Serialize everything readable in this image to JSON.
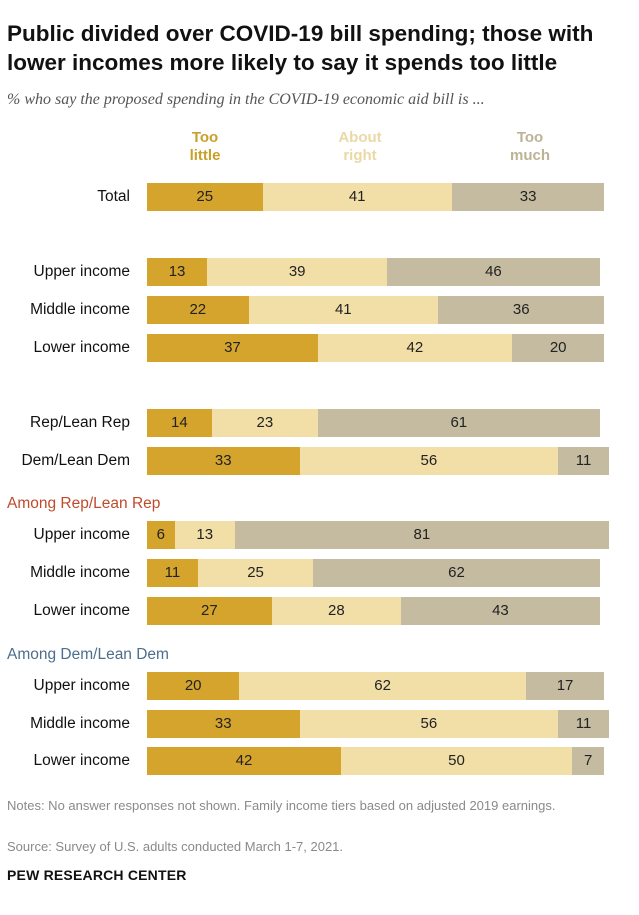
{
  "title": "Public divided over COVID-19 bill spending; those with lower incomes more likely to say it spends too little",
  "subtitle": "% who say the proposed spending in the COVID-19 economic aid bill is ...",
  "colors": {
    "too_little": "#d4a42c",
    "about_right": "#f2dfa8",
    "too_much": "#c4bba0",
    "legend_too_little": "#c9a028",
    "legend_about_right": "#ead9a4",
    "legend_too_much": "#bcb396",
    "group_rep": "#bf4a2c",
    "group_dem": "#4d6e8c"
  },
  "legend": [
    {
      "line1": "Too",
      "line2": "little"
    },
    {
      "line1": "About",
      "line2": "right"
    },
    {
      "line1": "Too",
      "line2": "much"
    }
  ],
  "group_labels": {
    "rep": "Among Rep/Lean Rep",
    "dem": "Among Dem/Lean Dem"
  },
  "chart_data": {
    "type": "bar",
    "orientation": "horizontal",
    "stacked": true,
    "title": "Public divided over COVID-19 bill spending; those with lower incomes more likely to say it spends too little",
    "series": [
      {
        "name": "Too little",
        "values": [
          25,
          13,
          22,
          37,
          14,
          33,
          6,
          11,
          27,
          20,
          33,
          42
        ]
      },
      {
        "name": "About right",
        "values": [
          41,
          39,
          41,
          42,
          23,
          56,
          13,
          25,
          28,
          62,
          56,
          50
        ]
      },
      {
        "name": "Too much",
        "values": [
          33,
          46,
          36,
          20,
          61,
          11,
          81,
          62,
          43,
          17,
          11,
          7
        ]
      }
    ],
    "categories": [
      "Total",
      "Upper income",
      "Middle income",
      "Lower income",
      "Rep/Lean Rep",
      "Dem/Lean Dem",
      "Upper income",
      "Middle income",
      "Lower income",
      "Upper income",
      "Middle income",
      "Lower income"
    ],
    "category_groups": [
      "",
      "",
      "",
      "",
      "",
      "",
      "rep",
      "rep",
      "rep",
      "dem",
      "dem",
      "dem"
    ],
    "xlim": [
      0,
      100
    ]
  },
  "notes": "Notes: No answer responses not shown. Family income tiers based on adjusted 2019 earnings.",
  "source": "Source: Survey of U.S. adults conducted March 1-7, 2021.",
  "footer": "PEW RESEARCH CENTER"
}
